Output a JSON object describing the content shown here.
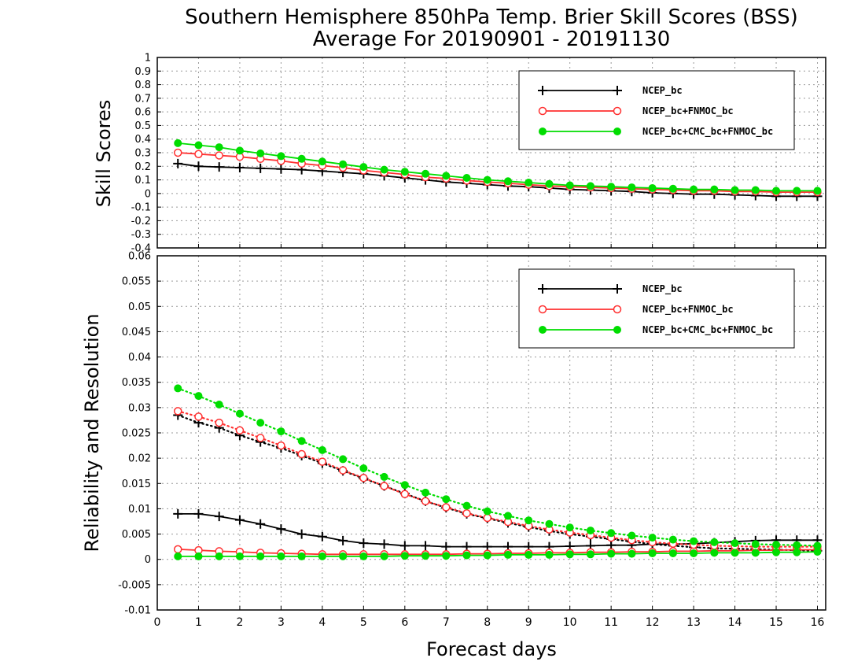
{
  "title": {
    "line1": "Southern Hemisphere 850hPa Temp. Brier Skill Scores (BSS)",
    "line2": "Average For 20190901 - 20191130"
  },
  "xlabel": "Forecast days",
  "colors": {
    "NCEP_bc": "#000000",
    "NCEP_bc+FNMOC_bc": "#ff3030",
    "NCEP_bc+CMC_bc+FNMOC_bc": "#00dd00"
  },
  "chart_data": [
    {
      "type": "line",
      "panel": "top",
      "ylabel": "Skill Scores",
      "xlim": [
        0,
        16.2
      ],
      "ylim": [
        -0.4,
        1
      ],
      "xticks": [
        0,
        1,
        2,
        3,
        4,
        5,
        6,
        7,
        8,
        9,
        10,
        11,
        12,
        13,
        14,
        15,
        16
      ],
      "yticks": [
        -0.4,
        -0.3,
        -0.2,
        -0.1,
        0,
        0.1,
        0.2,
        0.3,
        0.4,
        0.5,
        0.6,
        0.7,
        0.8,
        0.9,
        1
      ],
      "ytick_labels": [
        "-0.4",
        "-0.3",
        "-0.2",
        "-0.1",
        "0",
        "0.1",
        "0.2",
        "0.3",
        "0.4",
        "0.5",
        "0.6",
        "0.7",
        "0.8",
        "0.9",
        "1"
      ],
      "grid": true,
      "legend_position": "top-right",
      "x": [
        0.5,
        1,
        1.5,
        2,
        2.5,
        3,
        3.5,
        4,
        4.5,
        5,
        5.5,
        6,
        6.5,
        7,
        7.5,
        8,
        8.5,
        9,
        9.5,
        10,
        10.5,
        11,
        11.5,
        12,
        12.5,
        13,
        13.5,
        14,
        14.5,
        15,
        15.5,
        16
      ],
      "series": [
        {
          "name": "NCEP_bc",
          "marker": "plus",
          "style": "solid",
          "values": [
            0.22,
            0.2,
            0.195,
            0.19,
            0.185,
            0.18,
            0.175,
            0.165,
            0.155,
            0.145,
            0.13,
            0.115,
            0.1,
            0.085,
            0.075,
            0.065,
            0.055,
            0.05,
            0.04,
            0.03,
            0.025,
            0.02,
            0.015,
            0.005,
            0.0,
            -0.005,
            -0.005,
            -0.01,
            -0.015,
            -0.02,
            -0.02,
            -0.02
          ]
        },
        {
          "name": "NCEP_bc+FNMOC_bc",
          "marker": "open-circle",
          "style": "solid",
          "values": [
            0.3,
            0.29,
            0.28,
            0.27,
            0.255,
            0.24,
            0.22,
            0.205,
            0.19,
            0.17,
            0.155,
            0.14,
            0.12,
            0.11,
            0.095,
            0.085,
            0.075,
            0.065,
            0.055,
            0.05,
            0.045,
            0.04,
            0.035,
            0.03,
            0.025,
            0.02,
            0.02,
            0.015,
            0.015,
            0.01,
            0.01,
            0.01
          ]
        },
        {
          "name": "NCEP_bc+CMC_bc+FNMOC_bc",
          "marker": "filled-circle",
          "style": "solid",
          "values": [
            0.37,
            0.355,
            0.34,
            0.315,
            0.295,
            0.275,
            0.255,
            0.235,
            0.215,
            0.195,
            0.175,
            0.16,
            0.145,
            0.13,
            0.115,
            0.1,
            0.09,
            0.08,
            0.07,
            0.06,
            0.055,
            0.05,
            0.045,
            0.04,
            0.035,
            0.03,
            0.03,
            0.025,
            0.025,
            0.02,
            0.02,
            0.02
          ]
        }
      ]
    },
    {
      "type": "line",
      "panel": "bottom",
      "ylabel": "Reliability and Resolution",
      "xlim": [
        0,
        16.2
      ],
      "ylim": [
        -0.01,
        0.06
      ],
      "xticks": [
        0,
        1,
        2,
        3,
        4,
        5,
        6,
        7,
        8,
        9,
        10,
        11,
        12,
        13,
        14,
        15,
        16
      ],
      "yticks": [
        -0.01,
        -0.005,
        0,
        0.005,
        0.01,
        0.015,
        0.02,
        0.025,
        0.03,
        0.035,
        0.04,
        0.045,
        0.05,
        0.055,
        0.06
      ],
      "ytick_labels": [
        "-0.01",
        "-0.005",
        "0",
        "0.005",
        "0.01",
        "0.015",
        "0.02",
        "0.025",
        "0.03",
        "0.035",
        "0.04",
        "0.045",
        "0.05",
        "0.055",
        "0.06"
      ],
      "grid": true,
      "legend_position": "top-right",
      "x": [
        0.5,
        1,
        1.5,
        2,
        2.5,
        3,
        3.5,
        4,
        4.5,
        5,
        5.5,
        6,
        6.5,
        7,
        7.5,
        8,
        8.5,
        9,
        9.5,
        10,
        10.5,
        11,
        11.5,
        12,
        12.5,
        13,
        13.5,
        14,
        14.5,
        15,
        15.5,
        16
      ],
      "series": [
        {
          "name": "NCEP_bc",
          "kind": "reliability",
          "marker": "plus",
          "style": "solid",
          "values": [
            0.009,
            0.009,
            0.0085,
            0.0078,
            0.007,
            0.006,
            0.005,
            0.0045,
            0.0037,
            0.0032,
            0.003,
            0.0027,
            0.0027,
            0.0025,
            0.0025,
            0.0025,
            0.0025,
            0.0025,
            0.0025,
            0.0026,
            0.0027,
            0.0028,
            0.0028,
            0.003,
            0.003,
            0.0031,
            0.0033,
            0.0035,
            0.0037,
            0.0038,
            0.0038,
            0.0038
          ]
        },
        {
          "name": "NCEP_bc",
          "kind": "resolution",
          "marker": "plus",
          "style": "dotted",
          "values": [
            0.0285,
            0.027,
            0.026,
            0.0245,
            0.0232,
            0.022,
            0.0205,
            0.019,
            0.0175,
            0.016,
            0.0145,
            0.013,
            0.0115,
            0.0102,
            0.009,
            0.0081,
            0.0072,
            0.0064,
            0.0056,
            0.005,
            0.0045,
            0.004,
            0.0035,
            0.003,
            0.0027,
            0.0024,
            0.0022,
            0.0021,
            0.002,
            0.0019,
            0.0018,
            0.0017
          ]
        },
        {
          "name": "NCEP_bc+FNMOC_bc",
          "kind": "reliability",
          "marker": "open-circle",
          "style": "solid",
          "values": [
            0.002,
            0.0018,
            0.0016,
            0.0015,
            0.0013,
            0.0012,
            0.0011,
            0.001,
            0.001,
            0.001,
            0.001,
            0.001,
            0.001,
            0.001,
            0.0011,
            0.0011,
            0.0012,
            0.0012,
            0.0013,
            0.0013,
            0.0014,
            0.0014,
            0.0015,
            0.0015,
            0.0016,
            0.0016,
            0.0017,
            0.0017,
            0.0018,
            0.0018,
            0.0019,
            0.0019
          ]
        },
        {
          "name": "NCEP_bc+FNMOC_bc",
          "kind": "resolution",
          "marker": "open-circle",
          "style": "dotted",
          "values": [
            0.0293,
            0.0282,
            0.027,
            0.0255,
            0.024,
            0.0225,
            0.0208,
            0.0193,
            0.0176,
            0.0161,
            0.0145,
            0.0129,
            0.0115,
            0.0103,
            0.0091,
            0.0082,
            0.0074,
            0.0066,
            0.0059,
            0.0053,
            0.0048,
            0.0043,
            0.0038,
            0.0034,
            0.0031,
            0.0029,
            0.0027,
            0.0026,
            0.0025,
            0.0025,
            0.0025,
            0.0025
          ]
        },
        {
          "name": "NCEP_bc+CMC_bc+FNMOC_bc",
          "kind": "reliability",
          "marker": "filled-circle",
          "style": "solid",
          "values": [
            0.0006,
            0.0006,
            0.0006,
            0.0006,
            0.0006,
            0.0006,
            0.0006,
            0.0006,
            0.0006,
            0.0006,
            0.0006,
            0.0007,
            0.0007,
            0.0007,
            0.0008,
            0.0008,
            0.0009,
            0.0009,
            0.0009,
            0.001,
            0.001,
            0.0011,
            0.0011,
            0.0012,
            0.0012,
            0.0012,
            0.0013,
            0.0013,
            0.0013,
            0.0014,
            0.0014,
            0.0015
          ]
        },
        {
          "name": "NCEP_bc+CMC_bc+FNMOC_bc",
          "kind": "resolution",
          "marker": "filled-circle",
          "style": "dotted",
          "values": [
            0.0338,
            0.0323,
            0.0306,
            0.0288,
            0.027,
            0.0253,
            0.0234,
            0.0216,
            0.0198,
            0.018,
            0.0163,
            0.0147,
            0.0132,
            0.0119,
            0.0106,
            0.0095,
            0.0086,
            0.0077,
            0.007,
            0.0063,
            0.0057,
            0.0052,
            0.0047,
            0.0043,
            0.0039,
            0.0036,
            0.0034,
            0.0032,
            0.003,
            0.0029,
            0.0028,
            0.0027
          ]
        }
      ]
    }
  ]
}
